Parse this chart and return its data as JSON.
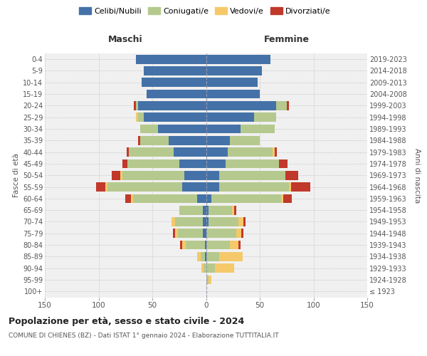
{
  "age_groups": [
    "100+",
    "95-99",
    "90-94",
    "85-89",
    "80-84",
    "75-79",
    "70-74",
    "65-69",
    "60-64",
    "55-59",
    "50-54",
    "45-49",
    "40-44",
    "35-39",
    "30-34",
    "25-29",
    "20-24",
    "15-19",
    "10-14",
    "5-9",
    "0-4"
  ],
  "birth_years": [
    "≤ 1923",
    "1924-1928",
    "1929-1933",
    "1934-1938",
    "1939-1943",
    "1944-1948",
    "1949-1953",
    "1954-1958",
    "1959-1963",
    "1964-1968",
    "1969-1973",
    "1974-1978",
    "1979-1983",
    "1984-1988",
    "1989-1993",
    "1994-1998",
    "1999-2003",
    "2004-2008",
    "2009-2013",
    "2014-2018",
    "2019-2023"
  ],
  "males": {
    "celibi": [
      0,
      0,
      0,
      1,
      1,
      3,
      3,
      3,
      8,
      22,
      20,
      25,
      30,
      35,
      45,
      58,
      63,
      55,
      60,
      58,
      65
    ],
    "coniugati": [
      0,
      0,
      2,
      4,
      18,
      23,
      26,
      22,
      60,
      70,
      58,
      48,
      42,
      26,
      16,
      5,
      2,
      0,
      0,
      0,
      0
    ],
    "vedovi": [
      0,
      0,
      2,
      3,
      3,
      3,
      3,
      0,
      2,
      2,
      2,
      0,
      0,
      0,
      0,
      2,
      0,
      0,
      0,
      0,
      0
    ],
    "divorziati": [
      0,
      0,
      0,
      0,
      2,
      2,
      0,
      0,
      5,
      8,
      8,
      5,
      2,
      2,
      0,
      0,
      2,
      0,
      0,
      0,
      0
    ]
  },
  "females": {
    "nubili": [
      0,
      0,
      0,
      0,
      0,
      0,
      2,
      2,
      5,
      12,
      12,
      18,
      20,
      22,
      32,
      45,
      65,
      50,
      48,
      52,
      60
    ],
    "coniugate": [
      0,
      2,
      8,
      12,
      22,
      28,
      28,
      22,
      65,
      65,
      62,
      50,
      42,
      28,
      32,
      20,
      10,
      0,
      0,
      0,
      0
    ],
    "vedove": [
      0,
      3,
      18,
      22,
      8,
      5,
      5,
      2,
      2,
      2,
      0,
      0,
      2,
      0,
      0,
      0,
      0,
      0,
      0,
      0,
      0
    ],
    "divorziate": [
      0,
      0,
      0,
      0,
      2,
      2,
      2,
      2,
      8,
      18,
      12,
      8,
      2,
      0,
      0,
      0,
      2,
      0,
      0,
      0,
      0
    ]
  },
  "colors": {
    "celibi": "#4472a8",
    "coniugati": "#b5c98e",
    "vedovi": "#f5c96a",
    "divorziati": "#c0392b"
  },
  "xlim": 150,
  "title1": "Popolazione per età, sesso e stato civile - 2024",
  "title2": "COMUNE DI CHIENES (BZ) - Dati ISTAT 1° gennaio 2024 - Elaborazione TUTTITALIA.IT",
  "xlabel_left": "Maschi",
  "xlabel_right": "Femmine",
  "ylabel_left": "Fasce di età",
  "ylabel_right": "Anni di nascita",
  "bg_color": "#f0f0f0",
  "legend_labels": [
    "Celibi/Nubili",
    "Coniugati/e",
    "Vedovi/e",
    "Divorziati/e"
  ]
}
